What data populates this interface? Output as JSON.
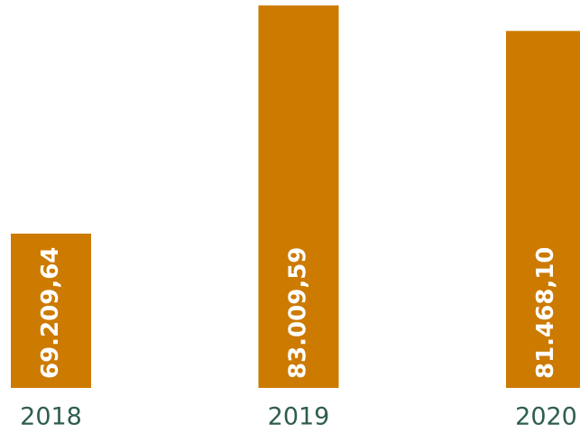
{
  "chart_data": {
    "type": "bar",
    "categories": [
      "2018",
      "2019",
      "2020"
    ],
    "values": [
      69209.64,
      83009.59,
      81468.1
    ],
    "value_labels": [
      "69.209,64",
      "83.009,59",
      "81.468,10"
    ],
    "color": "#cc7a00",
    "ylim": [
      59880,
      83340
    ]
  }
}
